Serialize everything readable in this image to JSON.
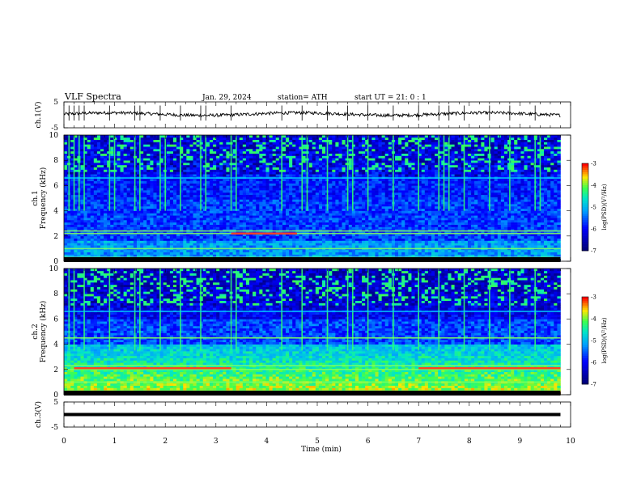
{
  "header": {
    "title": "VLF  Spectra",
    "date": "Jan. 29, 2024",
    "station": "station= ATH",
    "start": "start  UT  =    21: 0   : 1"
  },
  "chart_data": {
    "type": "heatmap",
    "xlabel": "Time  (min)",
    "xlim": [
      0,
      10
    ],
    "x_ticks": [
      "0",
      "1",
      "2",
      "3",
      "4",
      "5",
      "6",
      "7",
      "8",
      "9",
      "10"
    ],
    "duration_min": 9.8,
    "ch1_waveform": {
      "ylabel": "ch.1(V)",
      "ylim": [
        -5,
        5
      ],
      "y_ticks": [
        "5",
        "-5"
      ],
      "mean_level": 0.3,
      "noise_amplitude": 0.6,
      "spikes_min": [
        0.1,
        0.2,
        0.3,
        0.4,
        0.9,
        1.4,
        1.5,
        1.9,
        2.3,
        2.7,
        2.8,
        3.3,
        4.3,
        4.7,
        5.2,
        5.6,
        6.0,
        6.5,
        7.0,
        7.4,
        7.6,
        7.9,
        8.4,
        8.8,
        9.3
      ]
    },
    "ch1_spectrogram": {
      "ylabel": "Frequency  (kHz)",
      "channel_label": "ch.1",
      "ylim_khz": [
        0,
        10
      ],
      "y_ticks": [
        "0",
        "2",
        "4",
        "6",
        "8",
        "10"
      ],
      "tone_lines_khz": [
        0.3,
        1.0,
        2.2,
        2.4,
        6.6
      ],
      "tone_segments": [
        {
          "freq_khz": 2.2,
          "t_start": 3.3,
          "t_end": 4.6
        }
      ],
      "sferic_times_min": [
        0.1,
        0.2,
        0.3,
        0.4,
        0.9,
        1.0,
        1.4,
        1.5,
        1.9,
        2.0,
        2.3,
        2.7,
        2.8,
        3.3,
        3.4,
        4.3,
        4.7,
        4.8,
        5.2,
        5.6,
        5.7,
        6.0,
        6.5,
        7.0,
        7.4,
        7.5,
        7.6,
        7.9,
        8.4,
        8.8,
        9.3,
        9.4
      ]
    },
    "ch2_spectrogram": {
      "ylabel": "Frequency  (kHz)",
      "channel_label": "ch.2",
      "ylim_khz": [
        0,
        10
      ],
      "y_ticks": [
        "0",
        "2",
        "4",
        "6",
        "8",
        "10"
      ],
      "tone_lines_khz": [
        0.3,
        1.0,
        2.0,
        2.3,
        4.5,
        6.6
      ],
      "tone_segments": [
        {
          "freq_khz": 2.1,
          "t_start": 0.2,
          "t_end": 3.3
        },
        {
          "freq_khz": 2.1,
          "t_start": 7.0,
          "t_end": 9.8
        }
      ],
      "sferic_times_min": [
        0.1,
        0.2,
        0.4,
        0.9,
        1.4,
        1.5,
        1.9,
        2.3,
        2.7,
        3.3,
        3.4,
        4.3,
        4.7,
        5.2,
        5.6,
        5.7,
        6.0,
        6.5,
        7.0,
        7.4,
        7.9,
        8.4,
        8.8,
        9.3
      ]
    },
    "ch3_waveform": {
      "ylabel": "ch.3(V)",
      "ylim": [
        -5,
        5
      ],
      "y_ticks": [
        "5",
        "-5"
      ],
      "mean_level": 0.0
    },
    "colorbar": {
      "label": "log(PSD)(V²/Hz)",
      "range": [
        -7,
        -3
      ],
      "ticks": [
        "-3",
        "-4",
        "-5",
        "-6",
        "-7"
      ]
    },
    "colors": {
      "background": "#000000",
      "low": "#0000aa",
      "mid": "#00aaff",
      "high": "#00ff88",
      "peak": "#ff0000"
    }
  }
}
